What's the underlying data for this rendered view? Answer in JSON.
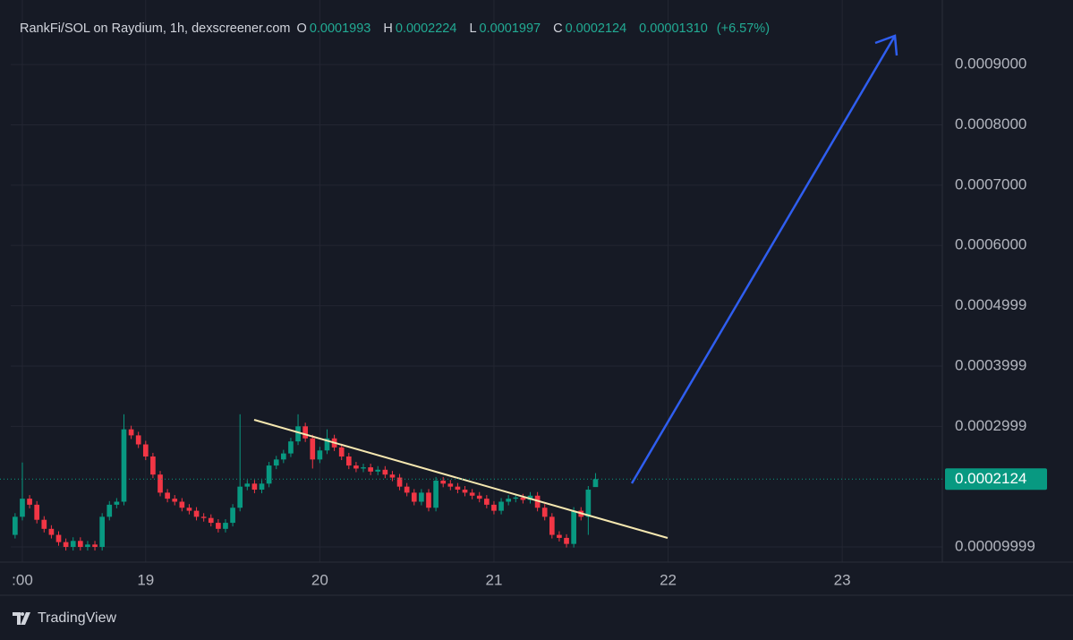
{
  "chart_data": {
    "type": "candlestick",
    "legend_text": {
      "symbol": "RankFi/SOL on Raydium, 1h, dexscreener.com",
      "open": "O",
      "high": "H",
      "low": "L",
      "close": "C",
      "change": "0.00001310",
      "change_pct": "(+6.57%)"
    },
    "brand": "TradingView",
    "up_color": "#089981",
    "down_color": "#f23645",
    "grid": true,
    "xlim": [
      -18.6,
      109.8
    ],
    "xticks": [
      {
        "value": -17,
        "label": ":00"
      },
      {
        "value": 0,
        "label": "19"
      },
      {
        "value": 24,
        "label": "20"
      },
      {
        "value": 48,
        "label": "21"
      },
      {
        "value": 72,
        "label": "22"
      },
      {
        "value": 96,
        "label": "23"
      }
    ],
    "ylim": [
      7.48e-05,
      0.001007
    ],
    "yticks": [
      9.999e-05,
      0.0002999,
      0.0003999,
      0.0004999,
      {
        "value": 0.0006,
        "label": "0.0006000"
      },
      {
        "value": 0.0007,
        "label": "0.0007000"
      },
      {
        "value": 0.0008,
        "label": "0.0008000"
      },
      {
        "value": 0.0009,
        "label": "0.0009000"
      }
    ],
    "x": [
      -18,
      -17,
      -16,
      -15,
      -14,
      -13,
      -12,
      -11,
      -10,
      -9,
      -8,
      -7,
      -6,
      -5,
      -4,
      -3,
      -2,
      -1,
      0,
      1,
      2,
      3,
      4,
      5,
      6,
      7,
      8,
      9,
      10,
      11,
      12,
      13,
      14,
      15,
      16,
      17,
      18,
      19,
      20,
      21,
      22,
      23,
      24,
      25,
      26,
      27,
      28,
      29,
      30,
      31,
      32,
      33,
      34,
      35,
      36,
      37,
      38,
      39,
      40,
      41,
      42,
      43,
      44,
      45,
      46,
      47,
      48,
      49,
      50,
      51,
      52,
      53,
      54,
      55,
      56,
      57,
      58,
      59,
      60,
      61,
      62
    ],
    "open": [
      0.00012,
      0.00015,
      0.00018,
      0.00017,
      0.000145,
      0.00013,
      0.00012,
      0.000108,
      0.0001,
      0.00011,
      0.0001,
      0.000104,
      0.0001,
      0.00015,
      0.00017,
      0.000175,
      0.000295,
      0.000285,
      0.00027,
      0.00025,
      0.00022,
      0.00019,
      0.00018,
      0.000175,
      0.000165,
      0.00016,
      0.00015,
      0.000148,
      0.00014,
      0.00013,
      0.00014,
      0.000165,
      0.0002,
      0.000205,
      0.000195,
      0.000205,
      0.000235,
      0.000245,
      0.000255,
      0.000275,
      0.0003,
      0.00028,
      0.000245,
      0.00026,
      0.00028,
      0.000265,
      0.00025,
      0.000235,
      0.00023,
      0.000232,
      0.000225,
      0.000228,
      0.00022,
      0.000215,
      0.0002,
      0.00019,
      0.000175,
      0.00019,
      0.000165,
      0.00021,
      0.000205,
      0.0002,
      0.000195,
      0.00019,
      0.000185,
      0.00018,
      0.00017,
      0.00016,
      0.000175,
      0.00018,
      0.000182,
      0.000178,
      0.000185,
      0.000165,
      0.00015,
      0.00012,
      0.000115,
      0.000105,
      0.00016,
      0.00015,
      0.0001993
    ],
    "high": [
      0.000156,
      0.00024,
      0.000186,
      0.000176,
      0.000151,
      0.000136,
      0.000126,
      0.000114,
      0.000116,
      0.000116,
      0.00011,
      0.00011,
      0.000156,
      0.000176,
      0.000181,
      0.00032,
      0.000301,
      0.000291,
      0.000276,
      0.000256,
      0.000226,
      0.000196,
      0.000186,
      0.000181,
      0.000171,
      0.000166,
      0.000156,
      0.000154,
      0.000146,
      0.000146,
      0.000171,
      0.00032,
      0.000211,
      0.000211,
      0.000211,
      0.000241,
      0.000251,
      0.000261,
      0.000281,
      0.00032,
      0.000306,
      0.000286,
      0.000266,
      0.000295,
      0.000286,
      0.000271,
      0.000256,
      0.000241,
      0.000238,
      0.000238,
      0.000234,
      0.000234,
      0.000226,
      0.000221,
      0.000206,
      0.000196,
      0.000196,
      0.000196,
      0.000216,
      0.000216,
      0.000211,
      0.000206,
      0.000201,
      0.000196,
      0.000191,
      0.000186,
      0.000176,
      0.000181,
      0.000186,
      0.000188,
      0.000188,
      0.000191,
      0.000191,
      0.000171,
      0.000156,
      0.000126,
      0.000121,
      0.000166,
      0.000166,
      0.000201,
      0.0002224
    ],
    "low": [
      0.000114,
      0.000144,
      0.000164,
      0.000139,
      0.000124,
      0.000114,
      0.000102,
      9.4e-05,
      9.4e-05,
      9.4e-05,
      9.4e-05,
      9.4e-05,
      9.4e-05,
      0.000144,
      0.000164,
      0.000169,
      0.000279,
      0.000264,
      0.000244,
      0.000214,
      0.000184,
      0.000174,
      0.000169,
      0.000159,
      0.000154,
      0.000144,
      0.000142,
      0.000134,
      0.000124,
      0.000124,
      0.000134,
      0.000159,
      0.000194,
      0.000189,
      0.000189,
      0.000199,
      0.000229,
      0.000239,
      0.000249,
      0.000269,
      0.000274,
      0.00023,
      0.000239,
      0.000254,
      0.000259,
      0.000244,
      0.000229,
      0.000224,
      0.000224,
      0.000219,
      0.000219,
      0.000214,
      0.000209,
      0.000194,
      0.000184,
      0.000169,
      0.000169,
      0.000159,
      0.000159,
      0.000199,
      0.000194,
      0.000189,
      0.000184,
      0.000179,
      0.000174,
      0.000164,
      0.000154,
      0.000154,
      0.000169,
      0.000174,
      0.000172,
      0.000172,
      0.000159,
      0.000144,
      0.000114,
      0.000109,
      9.9e-05,
      9.9e-05,
      0.000144,
      0.00012,
      0.0001997
    ],
    "close": [
      0.00015,
      0.00018,
      0.00017,
      0.000145,
      0.00013,
      0.00012,
      0.000108,
      0.0001,
      0.00011,
      0.0001,
      0.000104,
      0.0001,
      0.00015,
      0.00017,
      0.000175,
      0.000295,
      0.000285,
      0.00027,
      0.00025,
      0.00022,
      0.00019,
      0.00018,
      0.000175,
      0.000165,
      0.00016,
      0.00015,
      0.000148,
      0.00014,
      0.00013,
      0.00014,
      0.000165,
      0.0002,
      0.000205,
      0.000195,
      0.000205,
      0.000235,
      0.000245,
      0.000255,
      0.000275,
      0.0003,
      0.00028,
      0.000245,
      0.00026,
      0.00028,
      0.000265,
      0.00025,
      0.000235,
      0.00023,
      0.000232,
      0.000225,
      0.000228,
      0.00022,
      0.000215,
      0.0002,
      0.00019,
      0.000175,
      0.00019,
      0.000165,
      0.00021,
      0.000205,
      0.0002,
      0.000195,
      0.00019,
      0.000185,
      0.00018,
      0.00017,
      0.00016,
      0.000175,
      0.00018,
      0.000182,
      0.000178,
      0.000185,
      0.000165,
      0.00015,
      0.00012,
      0.000115,
      0.000105,
      0.00016,
      0.00015,
      0.000195,
      0.0002124
    ]
  }
}
